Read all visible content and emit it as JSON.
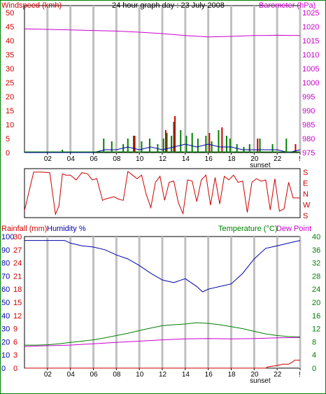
{
  "title": "24 hour graph day : 23 July 2008",
  "colors": {
    "wind": "#cc0000",
    "baro": "#cc00cc",
    "rain": "#cc0000",
    "humidity": "#0000aa",
    "temperature": "#008000",
    "dewpoint": "#cc00cc",
    "winddir": "#cc0000",
    "gust": "#008000",
    "avgwind": "#0000aa",
    "grid": "#c0c0c0"
  },
  "x_ticks": [
    "02",
    "04",
    "06",
    "08",
    "10",
    "12",
    "14",
    "16",
    "18",
    "20",
    "22",
    "!"
  ],
  "sunset_label": "sunset",
  "chart_data": [
    {
      "type": "line",
      "panel": "wind-barometer",
      "left_axis_label": "Windspeed (kmh)",
      "right_axis_label": "Barometer (hPa)",
      "left_ticks": [
        "50",
        "45",
        "40",
        "35",
        "30",
        "25",
        "20",
        "15",
        "10",
        "5",
        "0"
      ],
      "right_ticks": [
        "1025",
        "1020",
        "1015",
        "1010",
        "1005",
        "1000",
        "995",
        "990",
        "985",
        "980",
        "975"
      ],
      "left_range": [
        0,
        50
      ],
      "right_range": [
        975,
        1025
      ],
      "x_range_hours": [
        0,
        24
      ],
      "series": [
        {
          "name": "Barometer",
          "axis": "right",
          "x": [
            0,
            2,
            4,
            6,
            8,
            10,
            12,
            14,
            16,
            18,
            20,
            22,
            24
          ],
          "y": [
            1019.2,
            1019.0,
            1018.8,
            1018.6,
            1018.4,
            1018.0,
            1017.5,
            1016.8,
            1016.3,
            1016.5,
            1016.8,
            1016.9,
            1016.8
          ]
        },
        {
          "name": "Wind gust",
          "axis": "left",
          "x": [
            3.3,
            6.9,
            7.6,
            8.6,
            9.0,
            9.5,
            10.2,
            10.9,
            11.6,
            12.1,
            12.4,
            12.8,
            13.0,
            13.6,
            14.1,
            14.6,
            15.1,
            15.8,
            16.3,
            16.9,
            17.6,
            17.9,
            18.5,
            19.1,
            19.6,
            20.5,
            21.6,
            22.8
          ],
          "y": [
            1,
            5,
            4,
            3,
            5,
            6,
            4,
            5,
            3,
            5,
            7,
            6,
            11,
            8,
            6,
            7,
            5,
            6,
            4,
            8,
            6,
            5,
            3,
            2,
            3,
            5,
            3,
            5
          ]
        },
        {
          "name": "Wind max",
          "axis": "left",
          "x": [
            9.6,
            12.3,
            13.1,
            16.1,
            17.2,
            20.3,
            23.6
          ],
          "y": [
            6,
            8,
            13,
            7,
            9,
            5,
            3
          ]
        },
        {
          "name": "Wind average",
          "axis": "left",
          "x": [
            0,
            3,
            6,
            7,
            8,
            9,
            10,
            11,
            12,
            13,
            14,
            15,
            16,
            17,
            18,
            19,
            20,
            21,
            22,
            23,
            24
          ],
          "y": [
            0,
            0,
            0,
            1,
            1,
            2,
            1,
            2,
            1,
            2,
            3,
            2,
            3,
            2,
            2,
            1,
            1,
            1,
            1,
            0,
            1
          ]
        }
      ]
    },
    {
      "type": "line",
      "panel": "wind-direction",
      "right_axis_ticks": [
        "S",
        "E",
        "N",
        "W",
        "S"
      ],
      "right_range_degrees": [
        180,
        90,
        0,
        270,
        180
      ],
      "series": [
        {
          "name": "Wind direction",
          "x": [
            0,
            0.8,
            1.5,
            2.2,
            2.7,
            3.0,
            3.3,
            3.6,
            4.0,
            4.5,
            5.0,
            5.5,
            5.9,
            6.3,
            6.8,
            7.0,
            7.4,
            7.8,
            8.2,
            8.6,
            9.0,
            9.4,
            9.8,
            10.2,
            10.6,
            11.0,
            11.4,
            11.8,
            12.2,
            12.6,
            13.0,
            13.4,
            13.8,
            14.2,
            14.6,
            15.0,
            15.4,
            15.8,
            16.2,
            16.6,
            17.0,
            17.4,
            17.8,
            18.2,
            18.6,
            19.0,
            19.4,
            19.8,
            20.2,
            20.6,
            21.0,
            21.4,
            21.8,
            22.2,
            22.6,
            23.0,
            23.4,
            24.0
          ],
          "y": [
            215,
            175,
            175,
            170,
            185,
            255,
            160,
            150,
            150,
            110,
            170,
            160,
            110,
            120,
            300,
            310,
            320,
            330,
            310,
            300,
            180,
            150,
            120,
            150,
            350,
            240,
            90,
            140,
            300,
            90,
            100,
            280,
            190,
            110,
            100,
            290,
            110,
            150,
            260,
            130,
            270,
            140,
            110,
            150,
            90,
            100,
            200,
            90,
            120,
            100,
            110,
            220,
            120,
            210,
            230,
            90,
            320,
            320
          ]
        }
      ]
    },
    {
      "type": "line",
      "panel": "rain-humidity-temperature",
      "left_axis_label_1": "Rainfall (mm)",
      "left_axis_label_2": "Humidity %",
      "right_axis_label_1": "Temperature (°C)",
      "right_axis_label_2": "Dew Point",
      "humidity_ticks": [
        "100",
        "90",
        "80",
        "70",
        "60",
        "50",
        "40",
        "30",
        "20",
        "10",
        "0"
      ],
      "rain_ticks": [
        "30",
        "27",
        "24",
        "21",
        "18",
        "15",
        "12",
        "9",
        "6",
        "3",
        "0"
      ],
      "temp_ticks": [
        "40",
        "36",
        "32",
        "28",
        "24",
        "20",
        "16",
        "12",
        "8",
        "4",
        "0"
      ],
      "humidity_range": [
        0,
        100
      ],
      "rain_range": [
        0,
        30
      ],
      "temp_range": [
        0,
        40
      ],
      "series": [
        {
          "name": "Humidity",
          "axis": "humidity",
          "x": [
            0,
            1,
            2,
            3,
            3.5,
            4,
            5,
            6,
            7,
            8,
            9,
            10,
            11,
            12,
            13,
            14,
            15,
            15.5,
            16,
            17,
            18,
            19,
            20,
            21,
            22,
            23,
            24
          ],
          "y": [
            97,
            97,
            97,
            97,
            97,
            95,
            93,
            92,
            90,
            86,
            83,
            78,
            72,
            67,
            65,
            68,
            62,
            58,
            60,
            62,
            64,
            72,
            83,
            91,
            93,
            95,
            97
          ]
        },
        {
          "name": "Temperature",
          "axis": "temp",
          "x": [
            0,
            1,
            2,
            3,
            4,
            5,
            6,
            7,
            8,
            9,
            10,
            11,
            12,
            13,
            14,
            15,
            16,
            17,
            18,
            19,
            20,
            21,
            22,
            23,
            24
          ],
          "y": [
            7.0,
            7.0,
            7.1,
            7.4,
            7.8,
            8.2,
            8.6,
            9.2,
            9.9,
            10.6,
            11.4,
            12.2,
            12.9,
            13.2,
            13.4,
            13.8,
            13.6,
            13.2,
            12.6,
            12.0,
            11.2,
            10.4,
            9.9,
            9.6,
            9.5
          ]
        },
        {
          "name": "Dew Point",
          "axis": "temp",
          "x": [
            0,
            2,
            4,
            6,
            8,
            10,
            12,
            14,
            16,
            18,
            20,
            22,
            24
          ],
          "y": [
            6.6,
            6.8,
            7.0,
            7.4,
            7.8,
            8.2,
            8.6,
            8.9,
            9.0,
            8.9,
            9.0,
            9.2,
            9.3
          ]
        },
        {
          "name": "Rainfall",
          "axis": "rain",
          "x": [
            0,
            21,
            21.2,
            22,
            22.5,
            23,
            23.4,
            23.5,
            24
          ],
          "y": [
            0,
            0,
            0.3,
            0.6,
            0.9,
            0.9,
            1.5,
            1.8,
            1.8
          ]
        }
      ]
    }
  ]
}
